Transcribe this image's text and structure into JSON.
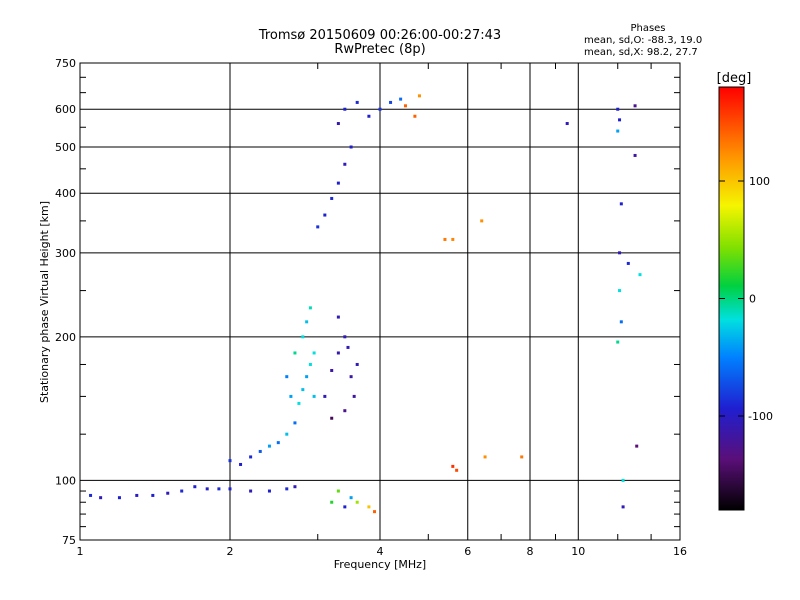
{
  "chart_data": {
    "type": "scatter",
    "title": "Tromsø 20150609 00:26:00-00:27:43",
    "subtitle": "RwPretec (8p)",
    "xlabel": "Frequency [MHz]",
    "ylabel": "Stationary phase Virtual Height [km]",
    "x_scale": "log",
    "y_scale": "log",
    "xlim": [
      1,
      16
    ],
    "ylim": [
      75,
      750
    ],
    "xticks": [
      1,
      2,
      4,
      6,
      8,
      10,
      16
    ],
    "xtick_labels": [
      "1",
      "2",
      "4",
      "6",
      "8",
      "10",
      "16"
    ],
    "yticks": [
      75,
      100,
      200,
      300,
      400,
      500,
      600,
      750
    ],
    "ytick_labels": [
      "75",
      "100",
      "200",
      "300",
      "400",
      "500",
      "600",
      "750"
    ],
    "grid": true,
    "legend": {
      "title": "Phases",
      "lines": [
        "mean, sd,O: -88.3, 19.0",
        "mean, sd,X: 98.2, 27.7"
      ]
    },
    "colorbar": {
      "label": "[deg]",
      "range": [
        -180,
        180
      ],
      "ticks": [
        100,
        0,
        -100
      ],
      "tick_labels": [
        "100",
        "0",
        "-100"
      ]
    },
    "series": [
      {
        "points": [
          [
            1.05,
            93,
            -95
          ],
          [
            1.1,
            92,
            -110
          ],
          [
            1.2,
            92,
            -100
          ],
          [
            1.3,
            93,
            -105
          ],
          [
            1.4,
            93,
            -100
          ],
          [
            1.5,
            94,
            -110
          ],
          [
            1.6,
            95,
            -95
          ],
          [
            1.7,
            97,
            -100
          ],
          [
            1.8,
            96,
            -105
          ],
          [
            1.9,
            96,
            -95
          ],
          [
            2.0,
            96,
            -100
          ],
          [
            2.2,
            95,
            -110
          ],
          [
            2.4,
            95,
            -100
          ],
          [
            2.6,
            96,
            -95
          ],
          [
            2.7,
            97,
            -110
          ],
          [
            2.0,
            110,
            -90
          ],
          [
            2.1,
            108,
            -100
          ],
          [
            2.2,
            112,
            -95
          ],
          [
            2.3,
            115,
            -70
          ],
          [
            2.4,
            118,
            -40
          ],
          [
            2.5,
            120,
            -60
          ],
          [
            2.6,
            125,
            -30
          ],
          [
            2.7,
            132,
            -60
          ],
          [
            2.75,
            145,
            -20
          ],
          [
            2.8,
            155,
            -30
          ],
          [
            2.85,
            165,
            -40
          ],
          [
            2.9,
            175,
            -20
          ],
          [
            2.7,
            185,
            -10
          ],
          [
            2.8,
            200,
            -20
          ],
          [
            2.85,
            215,
            -30
          ],
          [
            2.9,
            230,
            -15
          ],
          [
            2.6,
            165,
            -50
          ],
          [
            2.65,
            150,
            -40
          ],
          [
            2.95,
            150,
            -30
          ],
          [
            2.95,
            185,
            -20
          ],
          [
            3.1,
            150,
            -110
          ],
          [
            3.2,
            170,
            -120
          ],
          [
            3.3,
            185,
            -115
          ],
          [
            3.4,
            200,
            -110
          ],
          [
            3.5,
            165,
            -120
          ],
          [
            3.6,
            175,
            -110
          ],
          [
            3.4,
            140,
            -130
          ],
          [
            3.2,
            135,
            -150
          ],
          [
            3.3,
            220,
            -110
          ],
          [
            3.45,
            190,
            -110
          ],
          [
            3.55,
            150,
            -120
          ],
          [
            3.0,
            340,
            -90
          ],
          [
            3.1,
            360,
            -100
          ],
          [
            3.2,
            390,
            -95
          ],
          [
            3.3,
            420,
            -100
          ],
          [
            3.4,
            460,
            -110
          ],
          [
            3.5,
            500,
            -100
          ],
          [
            3.3,
            560,
            -115
          ],
          [
            3.4,
            600,
            -100
          ],
          [
            3.6,
            620,
            -95
          ],
          [
            3.8,
            580,
            -100
          ],
          [
            4.0,
            600,
            -90
          ],
          [
            4.2,
            620,
            -80
          ],
          [
            4.4,
            630,
            -60
          ],
          [
            4.5,
            610,
            140
          ],
          [
            4.7,
            580,
            140
          ],
          [
            4.8,
            640,
            120
          ],
          [
            5.4,
            320,
            130
          ],
          [
            5.6,
            320,
            125
          ],
          [
            5.7,
            105,
            150
          ],
          [
            5.6,
            107,
            160
          ],
          [
            6.4,
            350,
            120
          ],
          [
            7.7,
            112,
            130
          ],
          [
            6.5,
            112,
            120
          ],
          [
            3.2,
            90,
            10
          ],
          [
            3.3,
            95,
            30
          ],
          [
            3.4,
            88,
            -100
          ],
          [
            3.5,
            92,
            -40
          ],
          [
            3.6,
            90,
            50
          ],
          [
            3.8,
            88,
            100
          ],
          [
            3.9,
            86,
            140
          ],
          [
            9.5,
            560,
            -110
          ],
          [
            12.0,
            600,
            -100
          ],
          [
            12.1,
            570,
            -100
          ],
          [
            12.0,
            540,
            -40
          ],
          [
            12.2,
            380,
            -100
          ],
          [
            12.1,
            300,
            -110
          ],
          [
            12.6,
            285,
            -95
          ],
          [
            13.3,
            270,
            -20
          ],
          [
            12.1,
            250,
            -20
          ],
          [
            12.2,
            215,
            -60
          ],
          [
            12.0,
            195,
            -10
          ],
          [
            12.3,
            100,
            -20
          ],
          [
            12.3,
            88,
            -110
          ],
          [
            13.0,
            610,
            -130
          ],
          [
            13.0,
            480,
            -120
          ],
          [
            13.1,
            118,
            -140
          ]
        ]
      }
    ]
  }
}
